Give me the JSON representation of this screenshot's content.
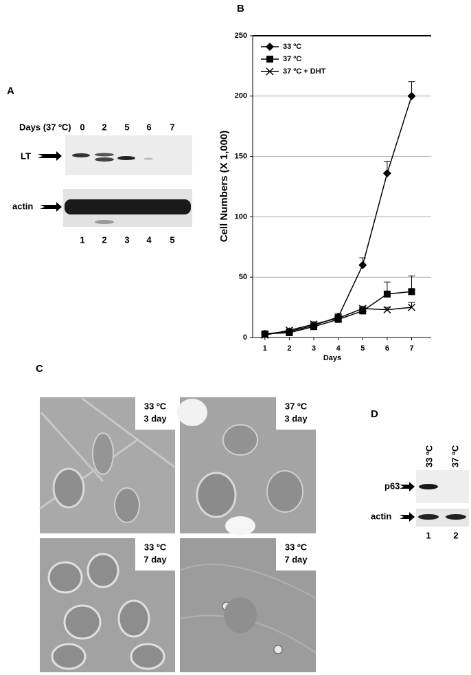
{
  "panel_a": {
    "label": "A",
    "days_label": "Days (37 ºC)",
    "days": [
      "0",
      "2",
      "5",
      "6",
      "7"
    ],
    "rows": [
      "LT",
      "actin"
    ],
    "lanes": [
      "1",
      "2",
      "3",
      "4",
      "5"
    ]
  },
  "chart_data": {
    "type": "line",
    "label": "B",
    "y_label": "Cell Numbers (X 1,000)",
    "x_label": "Days",
    "x": [
      1,
      2,
      3,
      4,
      5,
      6,
      7
    ],
    "xlim": [
      0.5,
      7.8
    ],
    "xticks": [
      1,
      2,
      3,
      4,
      5,
      6,
      7
    ],
    "ylim": [
      0,
      250
    ],
    "yticks": [
      0,
      50,
      100,
      150,
      200,
      250
    ],
    "grid": true,
    "legend": "upper left",
    "series": [
      {
        "name": "33 ºC",
        "color": "#000000",
        "marker": "diamond",
        "values": [
          3,
          5,
          10,
          17,
          60,
          136,
          200
        ],
        "errors": [
          1,
          1,
          2,
          3,
          6,
          10,
          12
        ]
      },
      {
        "name": "37 ºC",
        "color": "#000000",
        "marker": "square",
        "values": [
          3,
          4,
          9,
          15,
          22,
          36,
          38
        ],
        "errors": [
          1,
          1,
          2,
          2,
          3,
          10,
          13
        ]
      },
      {
        "name": "37 ºC + DHT",
        "color": "#000000",
        "marker": "x",
        "values": [
          2,
          6,
          11,
          16,
          24,
          23,
          25
        ],
        "errors": [
          1,
          1,
          2,
          3,
          2,
          2,
          4
        ]
      }
    ]
  },
  "panel_c": {
    "label": "C",
    "images": [
      {
        "temperature": "33 ºC",
        "time": "3 day"
      },
      {
        "temperature": "37 ºC",
        "time": "3 day"
      },
      {
        "temperature": "33 ºC",
        "time": "7 day"
      },
      {
        "temperature": "33 ºC",
        "time": "7 day"
      }
    ]
  },
  "panel_d": {
    "label": "D",
    "lane_headers": [
      "33 ºC",
      "37 ºC"
    ],
    "rows": [
      "p63",
      "actin"
    ],
    "lanes": [
      "1",
      "2"
    ]
  }
}
